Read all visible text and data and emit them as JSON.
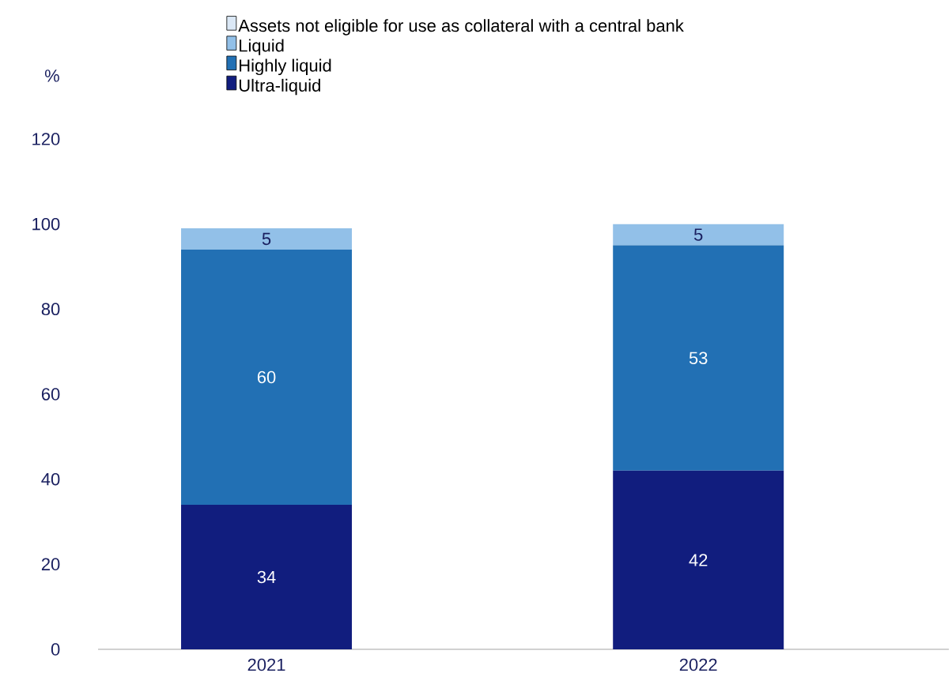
{
  "chart_data": {
    "type": "bar",
    "stacked": true,
    "ylabel": "%",
    "categories": [
      "2021",
      "2022"
    ],
    "series": [
      {
        "name": "Ultra-liquid",
        "color": "#111d7e",
        "values": [
          34,
          42
        ],
        "value_labels": [
          "34",
          "42"
        ]
      },
      {
        "name": "Highly liquid",
        "color": "#2270b4",
        "values": [
          60,
          53
        ],
        "value_labels": [
          "60",
          "53"
        ]
      },
      {
        "name": "Liquid",
        "color": "#92c0e8",
        "values": [
          5,
          5
        ],
        "value_labels": [
          "5",
          "5"
        ]
      },
      {
        "name": "Assets not eligible for use as collateral with a central bank",
        "color": "#dbe8f6",
        "values": [
          0,
          0
        ]
      }
    ],
    "ylim": [
      0,
      120
    ],
    "yticks": [
      0,
      20,
      40,
      60,
      80,
      100,
      120
    ],
    "grid": false,
    "legend": "top"
  }
}
